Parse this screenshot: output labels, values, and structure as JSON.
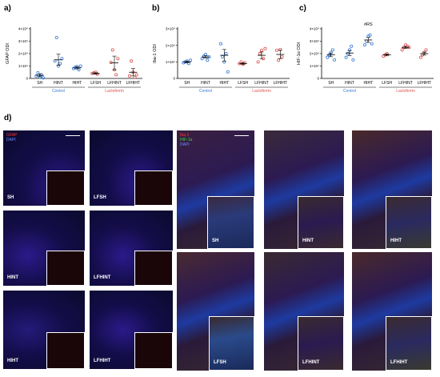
{
  "figure": {
    "panel_letters": {
      "a": "a)",
      "b": "b)",
      "c": "c)",
      "d": "d)"
    }
  },
  "chart_data": [
    {
      "type": "scatter",
      "panel": "a)",
      "ylabel": "GFAP ODI",
      "yticks": [
        "0",
        "1×10⁴",
        "2×10⁴",
        "3×10⁴",
        "4×10⁴"
      ],
      "ylim": [
        0,
        40000
      ],
      "categories": [
        "SH",
        "HINT",
        "HIHT",
        "LFSH",
        "LFHINT",
        "LFHIHT"
      ],
      "groups": [
        {
          "label": "Control",
          "color": "#3a7bd5",
          "span": [
            0,
            2
          ]
        },
        {
          "label": "Lactoferrin",
          "color": "#d9534f",
          "span": [
            3,
            5
          ]
        }
      ],
      "series": [
        {
          "values": [
            2000,
            4500,
            1000,
            3000,
            500
          ],
          "mean": 2500,
          "sem": 1200
        },
        {
          "values": [
            14000,
            33000,
            10000,
            12000,
            16000
          ],
          "mean": 15000,
          "sem": 4500
        },
        {
          "values": [
            8000,
            9000,
            9500,
            7000,
            10000
          ],
          "mean": 8500,
          "sem": 800
        },
        {
          "values": [
            4000,
            4500,
            5000,
            3500
          ],
          "mean": 4000,
          "sem": 600
        },
        {
          "values": [
            13000,
            23000,
            7000,
            3000,
            16000
          ],
          "mean": 12500,
          "sem": 5500
        },
        {
          "values": [
            2000,
            14000,
            5000,
            1000,
            3000
          ],
          "mean": 5000,
          "sem": 3000
        }
      ]
    },
    {
      "type": "scatter",
      "panel": "b)",
      "ylabel": "Iba-1 ODI",
      "yticks": [
        "0",
        "1×10⁴",
        "2×10⁴",
        "3×10⁴"
      ],
      "ylim": [
        0,
        30000
      ],
      "categories": [
        "SH",
        "HINT",
        "HIHT",
        "LFSH",
        "LFHINT",
        "LFHIHT"
      ],
      "groups": [
        {
          "label": "Control",
          "color": "#3a7bd5",
          "span": [
            0,
            2
          ]
        },
        {
          "label": "Lactoferrin",
          "color": "#d9534f",
          "span": [
            3,
            5
          ]
        }
      ],
      "series": [
        {
          "values": [
            9500,
            10000,
            10500,
            9000,
            11000
          ],
          "mean": 10000,
          "sem": 500
        },
        {
          "values": [
            12000,
            13500,
            14500,
            11000,
            13000
          ],
          "mean": 13000,
          "sem": 700
        },
        {
          "values": [
            21000,
            13000,
            10000,
            15000,
            4000
          ],
          "mean": 14000,
          "sem": 3500
        },
        {
          "values": [
            9000,
            10000,
            8500,
            9500
          ],
          "mean": 9000,
          "sem": 500
        },
        {
          "values": [
            10000,
            15000,
            17000,
            12000,
            18000
          ],
          "mean": 14000,
          "sem": 2000
        },
        {
          "values": [
            17000,
            11000,
            17500,
            13000
          ],
          "mean": 14500,
          "sem": 2500
        }
      ]
    },
    {
      "type": "scatter",
      "panel": "c)",
      "ylabel": "HIF-1α ODI",
      "yticks": [
        "0",
        "1×10⁴",
        "2×10⁴",
        "3×10⁴",
        "4×10⁴"
      ],
      "ylim": [
        0,
        40000
      ],
      "categories": [
        "SH",
        "HINT",
        "HIHT",
        "LFSH",
        "LFHINT",
        "LFHIHT"
      ],
      "groups": [
        {
          "label": "Control",
          "color": "#3a7bd5",
          "span": [
            0,
            2
          ]
        },
        {
          "label": "Lactoferrin",
          "color": "#d9534f",
          "span": [
            3,
            5
          ]
        }
      ],
      "annotation": {
        "text": "#RS",
        "category_index": 2
      },
      "series": [
        {
          "values": [
            17000,
            19000,
            21000,
            23000,
            15000
          ],
          "mean": 19000,
          "sem": 1500
        },
        {
          "values": [
            17000,
            20000,
            23000,
            26000,
            15000
          ],
          "mean": 20500,
          "sem": 2000
        },
        {
          "values": [
            27000,
            30000,
            34000,
            35000,
            28000
          ],
          "mean": 31000,
          "sem": 2000
        },
        {
          "values": [
            18000,
            19000,
            20000
          ],
          "mean": 19000,
          "sem": 800
        },
        {
          "values": [
            23000,
            25000,
            27000,
            26000,
            25000
          ],
          "mean": 25000,
          "sem": 800
        },
        {
          "values": [
            17000,
            19000,
            21000,
            23000
          ],
          "mean": 20000,
          "sem": 1200
        }
      ]
    }
  ],
  "micrographs_left": {
    "stain_labels": [
      "GFAP",
      "DAPI"
    ],
    "stain_colors": [
      "#ff3333",
      "#6a8cff"
    ],
    "tiles": [
      "SH",
      "LFSH",
      "HINT",
      "LFHINT",
      "HIHT",
      "LFHIHT"
    ]
  },
  "micrographs_right": {
    "stain_labels": [
      "Iba-1",
      "HIF-1α",
      "DAPI"
    ],
    "stain_colors": [
      "#ff3333",
      "#33dd33",
      "#6a8cff"
    ],
    "tiles": [
      "SH",
      "HINT",
      "HIHT",
      "LFSH",
      "LFHINT",
      "LFHIHT"
    ]
  }
}
